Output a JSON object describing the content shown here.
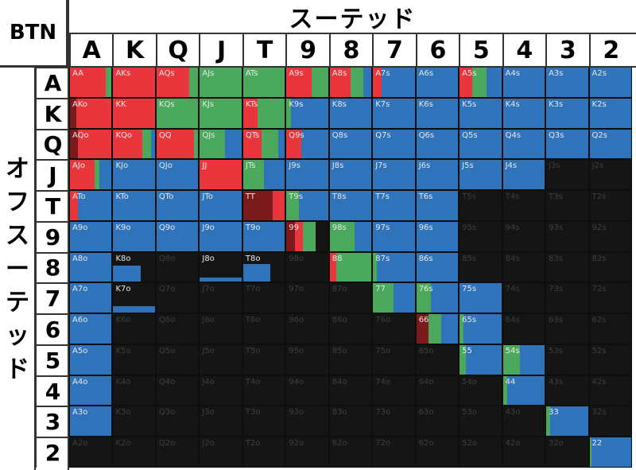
{
  "corner_label": "BTN",
  "suited_title": "スーテッド",
  "offsuit_title": "オフスーテッド",
  "ranks": [
    "A",
    "K",
    "Q",
    "J",
    "T",
    "9",
    "8",
    "7",
    "6",
    "5",
    "4",
    "3",
    "2"
  ],
  "colors": {
    "raise": "#e8363c",
    "call": "#4aa95c",
    "fold": "#2f73bb",
    "allin": "#7a1a1a",
    "empty": "#151515"
  },
  "chart_data": {
    "type": "heatmap",
    "title": "",
    "legend": "",
    "rows": [
      "A",
      "K",
      "Q",
      "J",
      "T",
      "9",
      "8",
      "7",
      "6",
      "5",
      "4",
      "3",
      "2"
    ],
    "columns": [
      "A",
      "K",
      "Q",
      "J",
      "T",
      "9",
      "8",
      "7",
      "6",
      "5",
      "4",
      "3",
      "2"
    ],
    "cells": [
      [
        {
          "name": "AA",
          "raise": 0.85,
          "call": 0.15,
          "fold": 0
        },
        {
          "name": "AKs",
          "raise": 1,
          "call": 0,
          "fold": 0
        },
        {
          "name": "AQs",
          "raise": 0.78,
          "call": 0.22,
          "fold": 0
        },
        {
          "name": "AJs",
          "raise": 0,
          "call": 1,
          "fold": 0
        },
        {
          "name": "ATs",
          "raise": 0,
          "call": 1,
          "fold": 0
        },
        {
          "name": "A9s",
          "raise": 0.6,
          "call": 0.4,
          "fold": 0
        },
        {
          "name": "A8s",
          "raise": 0.5,
          "call": 0.3,
          "fold": 0.2
        },
        {
          "name": "A7s",
          "raise": 0.2,
          "call": 0,
          "fold": 0.8
        },
        {
          "name": "A6s",
          "raise": 0,
          "call": 0,
          "fold": 1
        },
        {
          "name": "A5s",
          "raise": 0.3,
          "call": 0.35,
          "fold": 0.35
        },
        {
          "name": "A4s",
          "raise": 0,
          "call": 0,
          "fold": 1
        },
        {
          "name": "A3s",
          "raise": 0,
          "call": 0,
          "fold": 1
        },
        {
          "name": "A2s",
          "raise": 0,
          "call": 0,
          "fold": 1
        }
      ],
      [
        {
          "name": "AKo",
          "raise": 0.85,
          "call": 0,
          "fold": 0,
          "allin": 0.15
        },
        {
          "name": "KK",
          "raise": 1,
          "call": 0,
          "fold": 0
        },
        {
          "name": "KQs",
          "raise": 0,
          "call": 1,
          "fold": 0
        },
        {
          "name": "KJs",
          "raise": 0,
          "call": 1,
          "fold": 0
        },
        {
          "name": "KTs",
          "raise": 0.35,
          "call": 0.65,
          "fold": 0
        },
        {
          "name": "K9s",
          "raise": 0,
          "call": 0.1,
          "fold": 0.9
        },
        {
          "name": "K8s",
          "raise": 0,
          "call": 0,
          "fold": 1
        },
        {
          "name": "K7s",
          "raise": 0,
          "call": 0,
          "fold": 1
        },
        {
          "name": "K6s",
          "raise": 0,
          "call": 0,
          "fold": 1
        },
        {
          "name": "K5s",
          "raise": 0,
          "call": 0,
          "fold": 1
        },
        {
          "name": "K4s",
          "raise": 0,
          "call": 0,
          "fold": 1
        },
        {
          "name": "K3s",
          "raise": 0,
          "call": 0,
          "fold": 1
        },
        {
          "name": "K2s",
          "raise": 0,
          "call": 0,
          "fold": 1
        }
      ],
      [
        {
          "name": "AQo",
          "raise": 0.8,
          "call": 0,
          "fold": 0,
          "allin": 0.2
        },
        {
          "name": "KQo",
          "raise": 0.7,
          "call": 0.2,
          "fold": 0.1
        },
        {
          "name": "QQ",
          "raise": 0.9,
          "call": 0.1,
          "fold": 0
        },
        {
          "name": "QJs",
          "raise": 0,
          "call": 0.6,
          "fold": 0.4
        },
        {
          "name": "QTs",
          "raise": 0.45,
          "call": 0.4,
          "fold": 0.15
        },
        {
          "name": "Q9s",
          "raise": 0.35,
          "call": 0,
          "fold": 0.65
        },
        {
          "name": "Q8s",
          "raise": 0,
          "call": 0,
          "fold": 1
        },
        {
          "name": "Q7s",
          "raise": 0,
          "call": 0,
          "fold": 1
        },
        {
          "name": "Q6s",
          "raise": 0,
          "call": 0,
          "fold": 1
        },
        {
          "name": "Q5s",
          "raise": 0,
          "call": 0,
          "fold": 1
        },
        {
          "name": "Q4s",
          "raise": 0,
          "call": 0,
          "fold": 1
        },
        {
          "name": "Q3s",
          "raise": 0,
          "call": 0,
          "fold": 1
        },
        {
          "name": "Q2s",
          "raise": 0,
          "call": 0,
          "fold": 1
        }
      ],
      [
        {
          "name": "AJo",
          "raise": 0.6,
          "call": 0.1,
          "fold": 0.3
        },
        {
          "name": "KJo",
          "raise": 0,
          "call": 0,
          "fold": 1
        },
        {
          "name": "QJo",
          "raise": 0,
          "call": 0,
          "fold": 1
        },
        {
          "name": "JJ",
          "raise": 1,
          "call": 0,
          "fold": 0
        },
        {
          "name": "JTs",
          "raise": 0,
          "call": 0.5,
          "fold": 0.5
        },
        {
          "name": "J9s",
          "raise": 0,
          "call": 0,
          "fold": 1
        },
        {
          "name": "J8s",
          "raise": 0,
          "call": 0,
          "fold": 1
        },
        {
          "name": "J7s",
          "raise": 0,
          "call": 0,
          "fold": 1
        },
        {
          "name": "J6s",
          "raise": 0,
          "call": 0,
          "fold": 1
        },
        {
          "name": "J5s",
          "raise": 0,
          "call": 0,
          "fold": 1
        },
        {
          "name": "J4s",
          "raise": 0,
          "call": 0,
          "fold": 1
        },
        {
          "name": "J3s",
          "raise": 0,
          "call": 0,
          "fold": 0
        },
        {
          "name": "J2s",
          "raise": 0,
          "call": 0,
          "fold": 0
        }
      ],
      [
        {
          "name": "ATo",
          "raise": 0.2,
          "call": 0,
          "fold": 0.8
        },
        {
          "name": "KTo",
          "raise": 0,
          "call": 0,
          "fold": 1
        },
        {
          "name": "QTo",
          "raise": 0,
          "call": 0,
          "fold": 1
        },
        {
          "name": "JTo",
          "raise": 0,
          "call": 0,
          "fold": 1
        },
        {
          "name": "TT",
          "raise": 0.3,
          "call": 0,
          "fold": 0,
          "allin": 0.7
        },
        {
          "name": "T9s",
          "raise": 0,
          "call": 0.3,
          "fold": 0.7
        },
        {
          "name": "T8s",
          "raise": 0,
          "call": 0,
          "fold": 1
        },
        {
          "name": "T7s",
          "raise": 0,
          "call": 0,
          "fold": 1
        },
        {
          "name": "T6s",
          "raise": 0,
          "call": 0,
          "fold": 1
        },
        {
          "name": "T5s",
          "raise": 0,
          "call": 0,
          "fold": 0
        },
        {
          "name": "T4s",
          "raise": 0,
          "call": 0,
          "fold": 0
        },
        {
          "name": "T3s",
          "raise": 0,
          "call": 0,
          "fold": 0
        },
        {
          "name": "T2s",
          "raise": 0,
          "call": 0,
          "fold": 0
        }
      ],
      [
        {
          "name": "A9o",
          "raise": 0,
          "call": 0,
          "fold": 1
        },
        {
          "name": "K9o",
          "raise": 0,
          "call": 0,
          "fold": 1
        },
        {
          "name": "Q9o",
          "raise": 0,
          "call": 0,
          "fold": 1
        },
        {
          "name": "J9o",
          "raise": 0,
          "call": 0,
          "fold": 1
        },
        {
          "name": "T9o",
          "raise": 0,
          "call": 0,
          "fold": 1
        },
        {
          "name": "99",
          "raise": 0.2,
          "call": 0.3,
          "fold": 0,
          "allin": 0.2
        },
        {
          "name": "98s",
          "raise": 0,
          "call": 0.6,
          "fold": 0.4
        },
        {
          "name": "97s",
          "raise": 0,
          "call": 0,
          "fold": 1
        },
        {
          "name": "96s",
          "raise": 0,
          "call": 0,
          "fold": 1
        },
        {
          "name": "95s",
          "raise": 0,
          "call": 0,
          "fold": 0
        },
        {
          "name": "94s",
          "raise": 0,
          "call": 0,
          "fold": 0
        },
        {
          "name": "93s",
          "raise": 0,
          "call": 0,
          "fold": 0
        },
        {
          "name": "92s",
          "raise": 0,
          "call": 0,
          "fold": 0
        }
      ],
      [
        {
          "name": "A8o",
          "raise": 0,
          "call": 0,
          "fold": 1
        },
        {
          "name": "K8o",
          "raise": 0,
          "call": 0,
          "fold": 0.65
        },
        {
          "name": "Q8o",
          "raise": 0,
          "call": 0,
          "fold": 0
        },
        {
          "name": "J8o",
          "raise": 0,
          "call": 0,
          "fold": 0.1
        },
        {
          "name": "T8o",
          "raise": 0,
          "call": 0,
          "fold": 0.65
        },
        {
          "name": "98o",
          "raise": 0,
          "call": 0,
          "fold": 0
        },
        {
          "name": "88",
          "raise": 0.15,
          "call": 0.85,
          "fold": 0
        },
        {
          "name": "87s",
          "raise": 0,
          "call": 0.1,
          "fold": 0.9
        },
        {
          "name": "86s",
          "raise": 0,
          "call": 0,
          "fold": 1
        },
        {
          "name": "85s",
          "raise": 0,
          "call": 0,
          "fold": 0
        },
        {
          "name": "84s",
          "raise": 0,
          "call": 0,
          "fold": 0
        },
        {
          "name": "83s",
          "raise": 0,
          "call": 0,
          "fold": 0
        },
        {
          "name": "82s",
          "raise": 0,
          "call": 0,
          "fold": 0
        }
      ],
      [
        {
          "name": "A7o",
          "raise": 0,
          "call": 0,
          "fold": 1
        },
        {
          "name": "K7o",
          "raise": 0,
          "call": 0,
          "fold": 0.2
        },
        {
          "name": "Q7o",
          "raise": 0,
          "call": 0,
          "fold": 0
        },
        {
          "name": "J7o",
          "raise": 0,
          "call": 0,
          "fold": 0
        },
        {
          "name": "T7o",
          "raise": 0,
          "call": 0,
          "fold": 0
        },
        {
          "name": "97o",
          "raise": 0,
          "call": 0,
          "fold": 0
        },
        {
          "name": "87o",
          "raise": 0,
          "call": 0,
          "fold": 0
        },
        {
          "name": "77",
          "raise": 0,
          "call": 0.5,
          "fold": 0.5
        },
        {
          "name": "76s",
          "raise": 0,
          "call": 0.35,
          "fold": 0.65
        },
        {
          "name": "75s",
          "raise": 0,
          "call": 0,
          "fold": 1
        },
        {
          "name": "74s",
          "raise": 0,
          "call": 0,
          "fold": 0
        },
        {
          "name": "73s",
          "raise": 0,
          "call": 0,
          "fold": 0
        },
        {
          "name": "72s",
          "raise": 0,
          "call": 0,
          "fold": 0
        }
      ],
      [
        {
          "name": "A6o",
          "raise": 0,
          "call": 0,
          "fold": 1
        },
        {
          "name": "K6o",
          "raise": 0,
          "call": 0,
          "fold": 0
        },
        {
          "name": "Q6o",
          "raise": 0,
          "call": 0,
          "fold": 0
        },
        {
          "name": "J6o",
          "raise": 0,
          "call": 0,
          "fold": 0
        },
        {
          "name": "T6o",
          "raise": 0,
          "call": 0,
          "fold": 0
        },
        {
          "name": "96o",
          "raise": 0,
          "call": 0,
          "fold": 0
        },
        {
          "name": "86o",
          "raise": 0,
          "call": 0,
          "fold": 0
        },
        {
          "name": "76o",
          "raise": 0,
          "call": 0,
          "fold": 0
        },
        {
          "name": "66",
          "raise": 0,
          "call": 0.3,
          "fold": 0.4,
          "allin": 0.3
        },
        {
          "name": "65s",
          "raise": 0,
          "call": 0.1,
          "fold": 0.9
        },
        {
          "name": "64s",
          "raise": 0,
          "call": 0,
          "fold": 0
        },
        {
          "name": "63s",
          "raise": 0,
          "call": 0,
          "fold": 0
        },
        {
          "name": "62s",
          "raise": 0,
          "call": 0,
          "fold": 0
        }
      ],
      [
        {
          "name": "A5o",
          "raise": 0,
          "call": 0,
          "fold": 1
        },
        {
          "name": "K5o",
          "raise": 0,
          "call": 0,
          "fold": 0
        },
        {
          "name": "Q5o",
          "raise": 0,
          "call": 0,
          "fold": 0
        },
        {
          "name": "J5o",
          "raise": 0,
          "call": 0,
          "fold": 0
        },
        {
          "name": "T5o",
          "raise": 0,
          "call": 0,
          "fold": 0
        },
        {
          "name": "95o",
          "raise": 0,
          "call": 0,
          "fold": 0
        },
        {
          "name": "85o",
          "raise": 0,
          "call": 0,
          "fold": 0
        },
        {
          "name": "75o",
          "raise": 0,
          "call": 0,
          "fold": 0
        },
        {
          "name": "65o",
          "raise": 0,
          "call": 0,
          "fold": 0
        },
        {
          "name": "55",
          "raise": 0,
          "call": 0.15,
          "fold": 0.85
        },
        {
          "name": "54s",
          "raise": 0,
          "call": 0.4,
          "fold": 0.6
        },
        {
          "name": "53s",
          "raise": 0,
          "call": 0,
          "fold": 0
        },
        {
          "name": "52s",
          "raise": 0,
          "call": 0,
          "fold": 0
        }
      ],
      [
        {
          "name": "A4o",
          "raise": 0,
          "call": 0,
          "fold": 1
        },
        {
          "name": "K4o",
          "raise": 0,
          "call": 0,
          "fold": 0
        },
        {
          "name": "Q4o",
          "raise": 0,
          "call": 0,
          "fold": 0
        },
        {
          "name": "J4o",
          "raise": 0,
          "call": 0,
          "fold": 0
        },
        {
          "name": "T4o",
          "raise": 0,
          "call": 0,
          "fold": 0
        },
        {
          "name": "94o",
          "raise": 0,
          "call": 0,
          "fold": 0
        },
        {
          "name": "84o",
          "raise": 0,
          "call": 0,
          "fold": 0
        },
        {
          "name": "74o",
          "raise": 0,
          "call": 0,
          "fold": 0
        },
        {
          "name": "64o",
          "raise": 0,
          "call": 0,
          "fold": 0
        },
        {
          "name": "54o",
          "raise": 0,
          "call": 0,
          "fold": 0
        },
        {
          "name": "44",
          "raise": 0,
          "call": 0.1,
          "fold": 0.9
        },
        {
          "name": "43s",
          "raise": 0,
          "call": 0,
          "fold": 0
        },
        {
          "name": "42s",
          "raise": 0,
          "call": 0,
          "fold": 0
        }
      ],
      [
        {
          "name": "A3o",
          "raise": 0,
          "call": 0,
          "fold": 1
        },
        {
          "name": "K3o",
          "raise": 0,
          "call": 0,
          "fold": 0
        },
        {
          "name": "Q3o",
          "raise": 0,
          "call": 0,
          "fold": 0
        },
        {
          "name": "J3o",
          "raise": 0,
          "call": 0,
          "fold": 0
        },
        {
          "name": "T3o",
          "raise": 0,
          "call": 0,
          "fold": 0
        },
        {
          "name": "93o",
          "raise": 0,
          "call": 0,
          "fold": 0
        },
        {
          "name": "83o",
          "raise": 0,
          "call": 0,
          "fold": 0
        },
        {
          "name": "73o",
          "raise": 0,
          "call": 0,
          "fold": 0
        },
        {
          "name": "63o",
          "raise": 0,
          "call": 0,
          "fold": 0
        },
        {
          "name": "53o",
          "raise": 0,
          "call": 0,
          "fold": 0
        },
        {
          "name": "43o",
          "raise": 0,
          "call": 0,
          "fold": 0
        },
        {
          "name": "33",
          "raise": 0,
          "call": 0.1,
          "fold": 0.9
        },
        {
          "name": "32s",
          "raise": 0,
          "call": 0,
          "fold": 0
        }
      ],
      [
        {
          "name": "A2o",
          "raise": 0,
          "call": 0,
          "fold": 0
        },
        {
          "name": "K2o",
          "raise": 0,
          "call": 0,
          "fold": 0
        },
        {
          "name": "Q2o",
          "raise": 0,
          "call": 0,
          "fold": 0
        },
        {
          "name": "J2o",
          "raise": 0,
          "call": 0,
          "fold": 0
        },
        {
          "name": "T2o",
          "raise": 0,
          "call": 0,
          "fold": 0
        },
        {
          "name": "92o",
          "raise": 0,
          "call": 0,
          "fold": 0
        },
        {
          "name": "82o",
          "raise": 0,
          "call": 0,
          "fold": 0
        },
        {
          "name": "72o",
          "raise": 0,
          "call": 0,
          "fold": 0
        },
        {
          "name": "62o",
          "raise": 0,
          "call": 0,
          "fold": 0
        },
        {
          "name": "52o",
          "raise": 0,
          "call": 0,
          "fold": 0
        },
        {
          "name": "42o",
          "raise": 0,
          "call": 0,
          "fold": 0
        },
        {
          "name": "32o",
          "raise": 0,
          "call": 0,
          "fold": 0
        },
        {
          "name": "22",
          "raise": 0,
          "call": 0.05,
          "fold": 0.95
        }
      ]
    ]
  }
}
